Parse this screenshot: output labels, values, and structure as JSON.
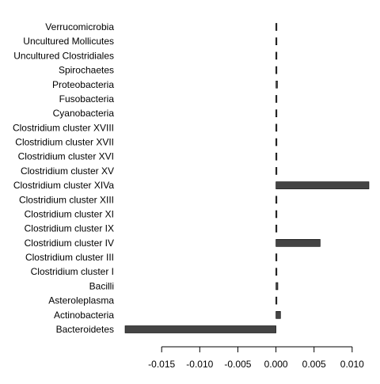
{
  "chart_data": {
    "type": "bar",
    "orientation": "horizontal",
    "categories": [
      "Verrucomicrobia",
      "Uncultured Mollicutes",
      "Uncultured Clostridiales",
      "Spirochaetes",
      "Proteobacteria",
      "Fusobacteria",
      "Cyanobacteria",
      "Clostridium cluster XVIII",
      "Clostridium cluster XVII",
      "Clostridium cluster XVI",
      "Clostridium cluster XV",
      "Clostridium cluster XIVa",
      "Clostridium cluster XIII",
      "Clostridium cluster XI",
      "Clostridium cluster IX",
      "Clostridium cluster IV",
      "Clostridium cluster III",
      "Clostridium cluster I",
      "Bacilli",
      "Asteroleplasma",
      "Actinobacteria",
      "Bacteroidetes"
    ],
    "values": [
      0.0001,
      3e-05,
      0.0001,
      2e-05,
      0.0002,
      4e-05,
      4e-05,
      2e-05,
      2e-05,
      6e-05,
      3e-05,
      0.0122,
      3e-05,
      0.00015,
      0.00015,
      0.0058,
      8e-05,
      6e-05,
      0.00025,
      2e-05,
      0.0006,
      -0.0198
    ],
    "xlim": [
      -0.0198,
      0.0122
    ],
    "xticks": [
      -0.015,
      -0.01,
      -0.005,
      0,
      0.005,
      0.01
    ],
    "xtick_labels": [
      "-0.015",
      "-0.010",
      "-0.005",
      "0.000",
      "0.005",
      "0.010"
    ],
    "bar_color": "#444444",
    "grid": false,
    "title": "",
    "xlabel": "",
    "ylabel": ""
  }
}
